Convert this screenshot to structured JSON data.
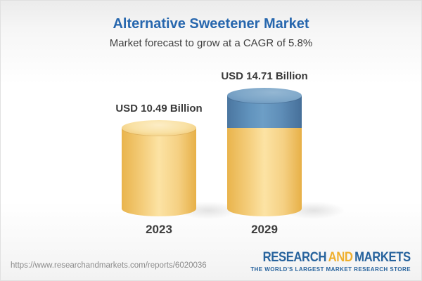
{
  "header": {
    "title": "Alternative Sweetener Market",
    "subtitle": "Market forecast to grow at a CAGR of 5.8%"
  },
  "chart_data": {
    "type": "bar",
    "variant": "3d-cylinder",
    "categories": [
      "2023",
      "2029"
    ],
    "values": [
      10.49,
      14.71
    ],
    "unit": "USD Billion",
    "value_labels": [
      "USD 10.49 Billion",
      "USD 14.71 Billion"
    ],
    "title": "Alternative Sweetener Market",
    "subtitle": "Market forecast to grow at a CAGR of 5.8%",
    "cagr_pct": 5.8,
    "legend": "none",
    "axes": "none",
    "colors": {
      "base_segment": "#F5CF80",
      "growth_segment": "#6697C0"
    }
  },
  "footer": {
    "url": "https://www.researchandmarkets.com/reports/6020036",
    "logo": {
      "research": "RESEARCH",
      "and": "AND",
      "markets": "MARKETS",
      "tagline": "THE WORLD'S LARGEST MARKET RESEARCH STORE"
    }
  },
  "colors": {
    "title_blue": "#2767AE",
    "logo_blue": "#27639D",
    "logo_gold": "#EFAF2D",
    "text_dark": "#3A3A3A",
    "url_gray": "#8B8B8B"
  }
}
